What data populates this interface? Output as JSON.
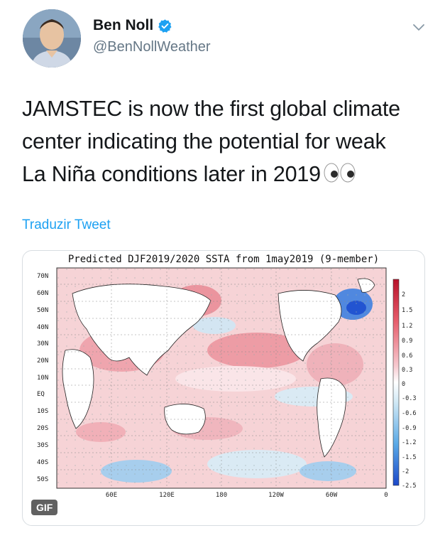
{
  "tweet": {
    "author_name": "Ben Noll",
    "author_handle": "@BenNollWeather",
    "text_lines": [
      "JAMSTEC is now the first global climate",
      "center indicating the potential for weak",
      "La Niña conditions later in 2019"
    ],
    "translate_label": "Traduzir Tweet"
  },
  "icons": {
    "verified": "verified-badge-icon",
    "menu": "chevron-down-icon",
    "emoji": "eyes-emoji-icon"
  },
  "colors": {
    "verified": "#1da1f2",
    "link": "#1da1f2",
    "handle": "#657786"
  },
  "media": {
    "title": "Predicted DJF2019/2020 SSTA from 1may2019 (9-member)",
    "gif_label": "GIF",
    "lat_labels": [
      "70N",
      "60N",
      "50N",
      "40N",
      "30N",
      "20N",
      "10N",
      "EQ",
      "10S",
      "20S",
      "30S",
      "40S",
      "50S"
    ],
    "lon_labels": [
      "60E",
      "120E",
      "180",
      "120W",
      "60W",
      "0"
    ],
    "colorbar_labels": [
      "2",
      "1.5",
      "1.2",
      "0.9",
      "0.6",
      "0.3",
      "0",
      "-0.3",
      "-0.6",
      "-0.9",
      "-1.2",
      "-1.5",
      "-2",
      "-2.5"
    ]
  }
}
